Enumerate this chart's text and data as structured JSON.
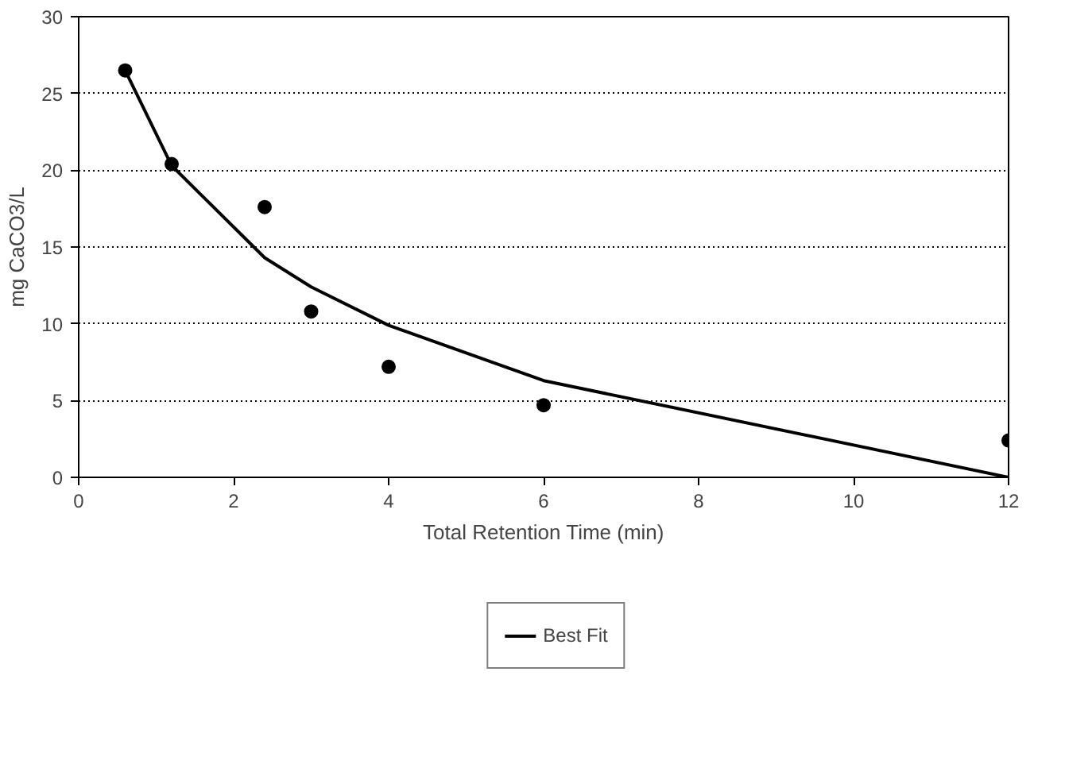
{
  "chart_data": {
    "type": "scatter",
    "xlabel": "Total Retention Time (min)",
    "ylabel": "mg CaCO3/L",
    "xlim": [
      0,
      12
    ],
    "xticks": [
      0,
      2,
      4,
      6,
      8,
      10,
      12
    ],
    "ylim": [
      0,
      30
    ],
    "yticks": [
      0,
      5,
      10,
      15,
      20,
      25,
      30
    ],
    "grid": "y",
    "legend": "bottom",
    "series": [
      {
        "color": "#000000",
        "marker": "circle",
        "x": [
          0.6,
          1.2,
          2.4,
          3,
          4,
          6,
          12
        ],
        "values": [
          26.5,
          20.4,
          17.6,
          10.8,
          7.2,
          4.7,
          2.4
        ]
      },
      {
        "type": "line",
        "name": "Best Fit",
        "color": "#000000",
        "marker": "none",
        "x": [
          0.6,
          1.2,
          2.4,
          3,
          4,
          6,
          12
        ],
        "values": [
          26.5,
          20.3,
          14.3,
          12.4,
          9.9,
          6.3,
          0
        ]
      }
    ]
  }
}
